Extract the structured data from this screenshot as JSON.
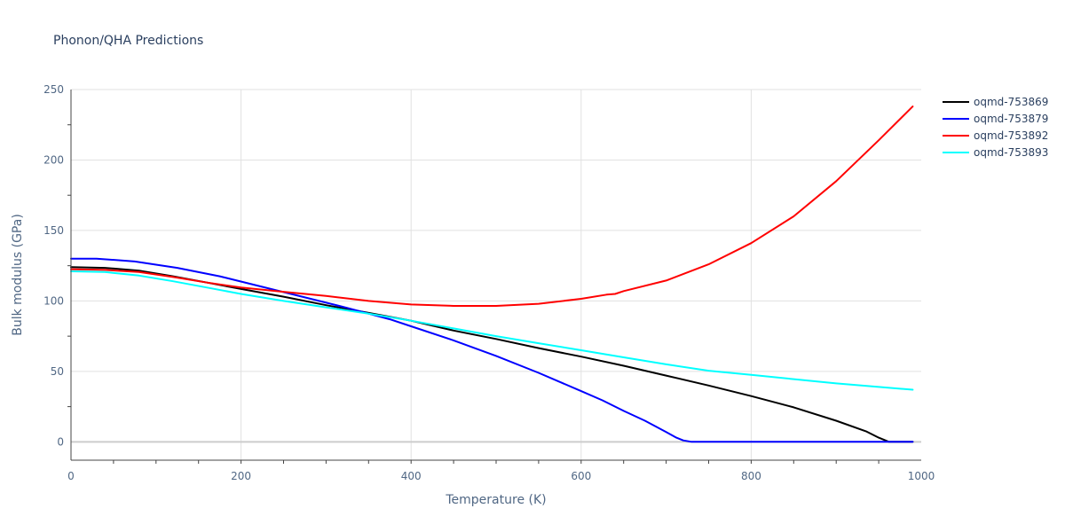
{
  "chart_data": {
    "type": "line",
    "title": "Phonon/QHA Predictions",
    "xlabel": "Temperature (K)",
    "ylabel": "Bulk modulus (GPa)",
    "xlim": [
      0,
      1000
    ],
    "ylim": [
      -13,
      250
    ],
    "xticks": [
      0,
      200,
      400,
      600,
      800,
      1000
    ],
    "yticks": [
      0,
      50,
      100,
      150,
      200,
      250
    ],
    "xtick_labels": [
      "0",
      "200",
      "400",
      "600",
      "800",
      "1000"
    ],
    "ytick_labels": [
      "0",
      "50",
      "100",
      "150",
      "200",
      "250"
    ],
    "grid": true,
    "legend_position": "top-right",
    "series": [
      {
        "name": "oqmd-753869",
        "color": "#000000",
        "x": [
          0,
          40,
          80,
          120,
          160,
          200,
          250,
          300,
          350,
          400,
          450,
          500,
          550,
          600,
          650,
          700,
          750,
          800,
          850,
          900,
          935,
          950,
          962,
          970,
          990
        ],
        "y": [
          124,
          123.5,
          121.5,
          117.5,
          113,
          108.5,
          103,
          97,
          91.5,
          86,
          79,
          73,
          66.5,
          60.5,
          54,
          47,
          40,
          32.5,
          24.5,
          15,
          7.5,
          3,
          0,
          0,
          0
        ]
      },
      {
        "name": "oqmd-753879",
        "color": "#0000ff",
        "x": [
          0,
          30,
          75,
          125,
          175,
          225,
          275,
          325,
          375,
          400,
          450,
          500,
          550,
          600,
          625,
          650,
          675,
          700,
          712,
          720,
          730,
          760,
          800,
          900,
          990
        ],
        "y": [
          130,
          130,
          128,
          123.5,
          117.5,
          110,
          102.5,
          95,
          87,
          82,
          72,
          61,
          49,
          36,
          29.5,
          22,
          15,
          7,
          3,
          1,
          0,
          0,
          0,
          0,
          0
        ]
      },
      {
        "name": "oqmd-753892",
        "color": "#ff0000",
        "x": [
          0,
          40,
          80,
          120,
          160,
          200,
          250,
          300,
          350,
          400,
          450,
          500,
          550,
          600,
          630,
          640,
          650,
          700,
          750,
          800,
          850,
          900,
          950,
          990
        ],
        "y": [
          122.5,
          122,
          120.5,
          117,
          113,
          109.5,
          106.5,
          103.5,
          100,
          97.5,
          96.5,
          96.5,
          98,
          101.5,
          104.5,
          105,
          107,
          114.5,
          126,
          141,
          160,
          185,
          214,
          238
        ]
      },
      {
        "name": "oqmd-753893",
        "color": "#00ffff",
        "x": [
          0,
          40,
          80,
          120,
          160,
          200,
          250,
          300,
          350,
          400,
          450,
          500,
          550,
          600,
          650,
          700,
          750,
          800,
          850,
          900,
          950,
          990
        ],
        "y": [
          121,
          120.5,
          118,
          114,
          109.5,
          105,
          100,
          95.5,
          91,
          86,
          80.5,
          75,
          70,
          65,
          60,
          55,
          50.5,
          47.5,
          44.5,
          41.5,
          39,
          37
        ]
      }
    ]
  }
}
